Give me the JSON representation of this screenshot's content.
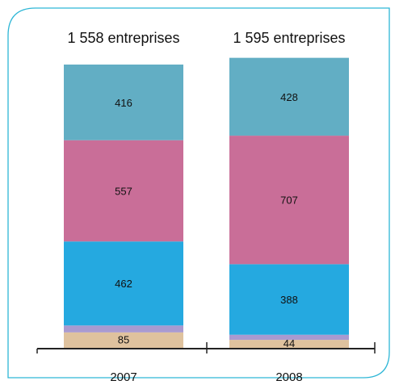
{
  "chart_data": {
    "type": "bar",
    "stacked": true,
    "categories": [
      "2007",
      "2008"
    ],
    "bar_titles": [
      "1 558 entreprises",
      "1 595 entreprises"
    ],
    "totals": [
      1558,
      1595
    ],
    "series": [
      {
        "values": [
          85,
          44
        ],
        "color": "#dfc29e"
      },
      {
        "values": [
          38,
          28
        ],
        "color": "#a99ad0"
      },
      {
        "values": [
          462,
          388
        ],
        "color": "#25a9e0"
      },
      {
        "values": [
          557,
          707
        ],
        "color": "#c96e98"
      },
      {
        "values": [
          416,
          428
        ],
        "color": "#62aec4"
      }
    ],
    "xlabel": "",
    "ylabel": "",
    "grid": false,
    "legend": "none"
  },
  "colors": {
    "frame_border": "#2db6d6",
    "axis": "#222222"
  }
}
